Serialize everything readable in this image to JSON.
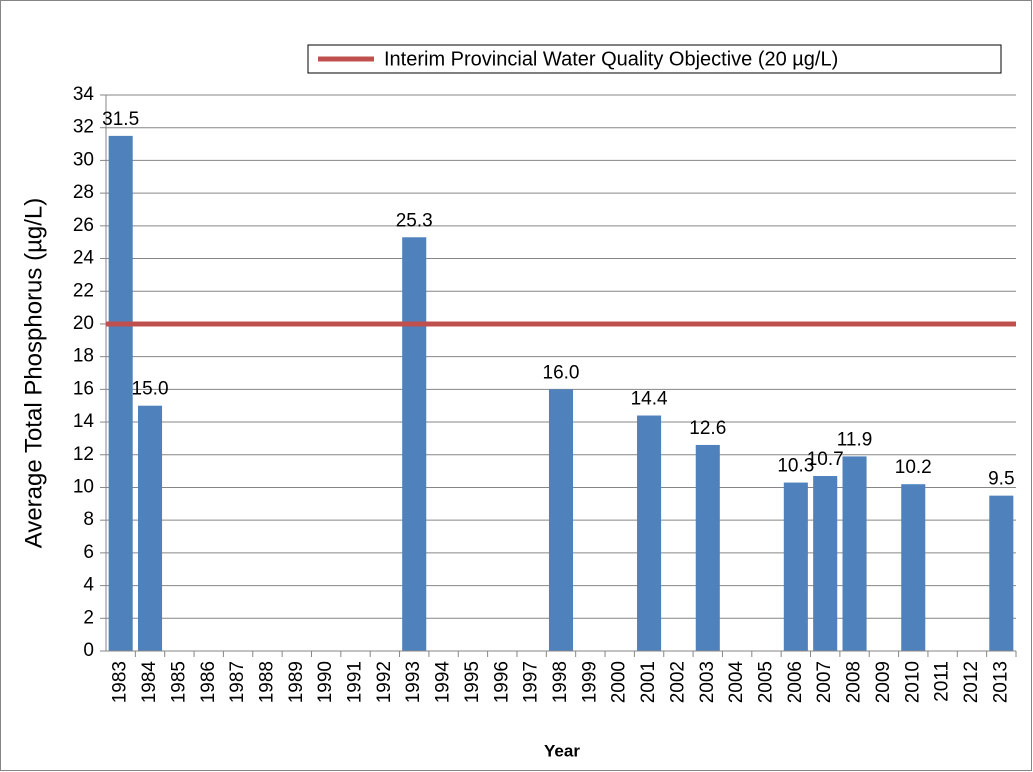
{
  "chart_data": {
    "type": "bar",
    "x_label": "Year",
    "y_label": "Average Total Phosphorus (µg/L)",
    "categories": [
      "1983",
      "1984",
      "1985",
      "1986",
      "1987",
      "1988",
      "1989",
      "1990",
      "1991",
      "1992",
      "1993",
      "1994",
      "1995",
      "1996",
      "1997",
      "1998",
      "1999",
      "2000",
      "2001",
      "2002",
      "2003",
      "2004",
      "2005",
      "2006",
      "2007",
      "2008",
      "2009",
      "2010",
      "2011",
      "2012",
      "2013"
    ],
    "values": [
      31.5,
      15,
      null,
      null,
      null,
      null,
      null,
      null,
      null,
      null,
      25.3,
      null,
      null,
      null,
      null,
      16,
      null,
      null,
      14.4,
      null,
      12.6,
      null,
      null,
      10.3,
      10.7,
      11.9,
      null,
      10.2,
      null,
      null,
      9.5
    ],
    "value_labels": [
      "31.5",
      "15.0",
      null,
      null,
      null,
      null,
      null,
      null,
      null,
      null,
      "25.3",
      null,
      null,
      null,
      null,
      "16.0",
      null,
      null,
      "14.4",
      null,
      "12.6",
      null,
      null,
      "10.3",
      "10.7",
      "11.9",
      null,
      "10.2",
      null,
      null,
      "9.5"
    ],
    "color": "#4f81bd",
    "reference_line": {
      "name": "Interim Provincial Water Quality Objective (20 µg/L)",
      "value": 20,
      "color": "#c0504d"
    },
    "ylim": [
      0,
      34
    ],
    "yticks": [
      0,
      2,
      4,
      6,
      8,
      10,
      12,
      14,
      16,
      18,
      20,
      22,
      24,
      26,
      28,
      30,
      32,
      34
    ],
    "grid": true
  }
}
